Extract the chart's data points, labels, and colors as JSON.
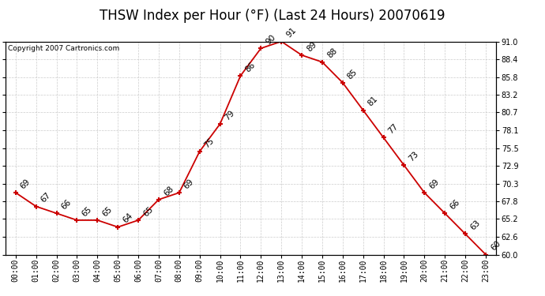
{
  "title": "THSW Index per Hour (°F) (Last 24 Hours) 20070619",
  "copyright": "Copyright 2007 Cartronics.com",
  "hours": [
    0,
    1,
    2,
    3,
    4,
    5,
    6,
    7,
    8,
    9,
    10,
    11,
    12,
    13,
    14,
    15,
    16,
    17,
    18,
    19,
    20,
    21,
    22,
    23
  ],
  "values": [
    69,
    67,
    66,
    65,
    65,
    64,
    65,
    68,
    69,
    75,
    79,
    86,
    90,
    91,
    89,
    88,
    85,
    81,
    77,
    73,
    69,
    66,
    63,
    60
  ],
  "hour_labels": [
    "00:00",
    "01:00",
    "02:00",
    "03:00",
    "04:00",
    "05:00",
    "06:00",
    "07:00",
    "08:00",
    "09:00",
    "10:00",
    "11:00",
    "12:00",
    "13:00",
    "14:00",
    "15:00",
    "16:00",
    "17:00",
    "18:00",
    "19:00",
    "20:00",
    "21:00",
    "22:00",
    "23:00"
  ],
  "ylim": [
    60.0,
    91.0
  ],
  "yticks": [
    60.0,
    62.6,
    65.2,
    67.8,
    70.3,
    72.9,
    75.5,
    78.1,
    80.7,
    83.2,
    85.8,
    88.4,
    91.0
  ],
  "line_color": "#cc0000",
  "marker_color": "#cc0000",
  "bg_color": "#ffffff",
  "grid_color": "#c0c0c0",
  "title_fontsize": 12,
  "tick_fontsize": 7,
  "annot_fontsize": 7.5
}
